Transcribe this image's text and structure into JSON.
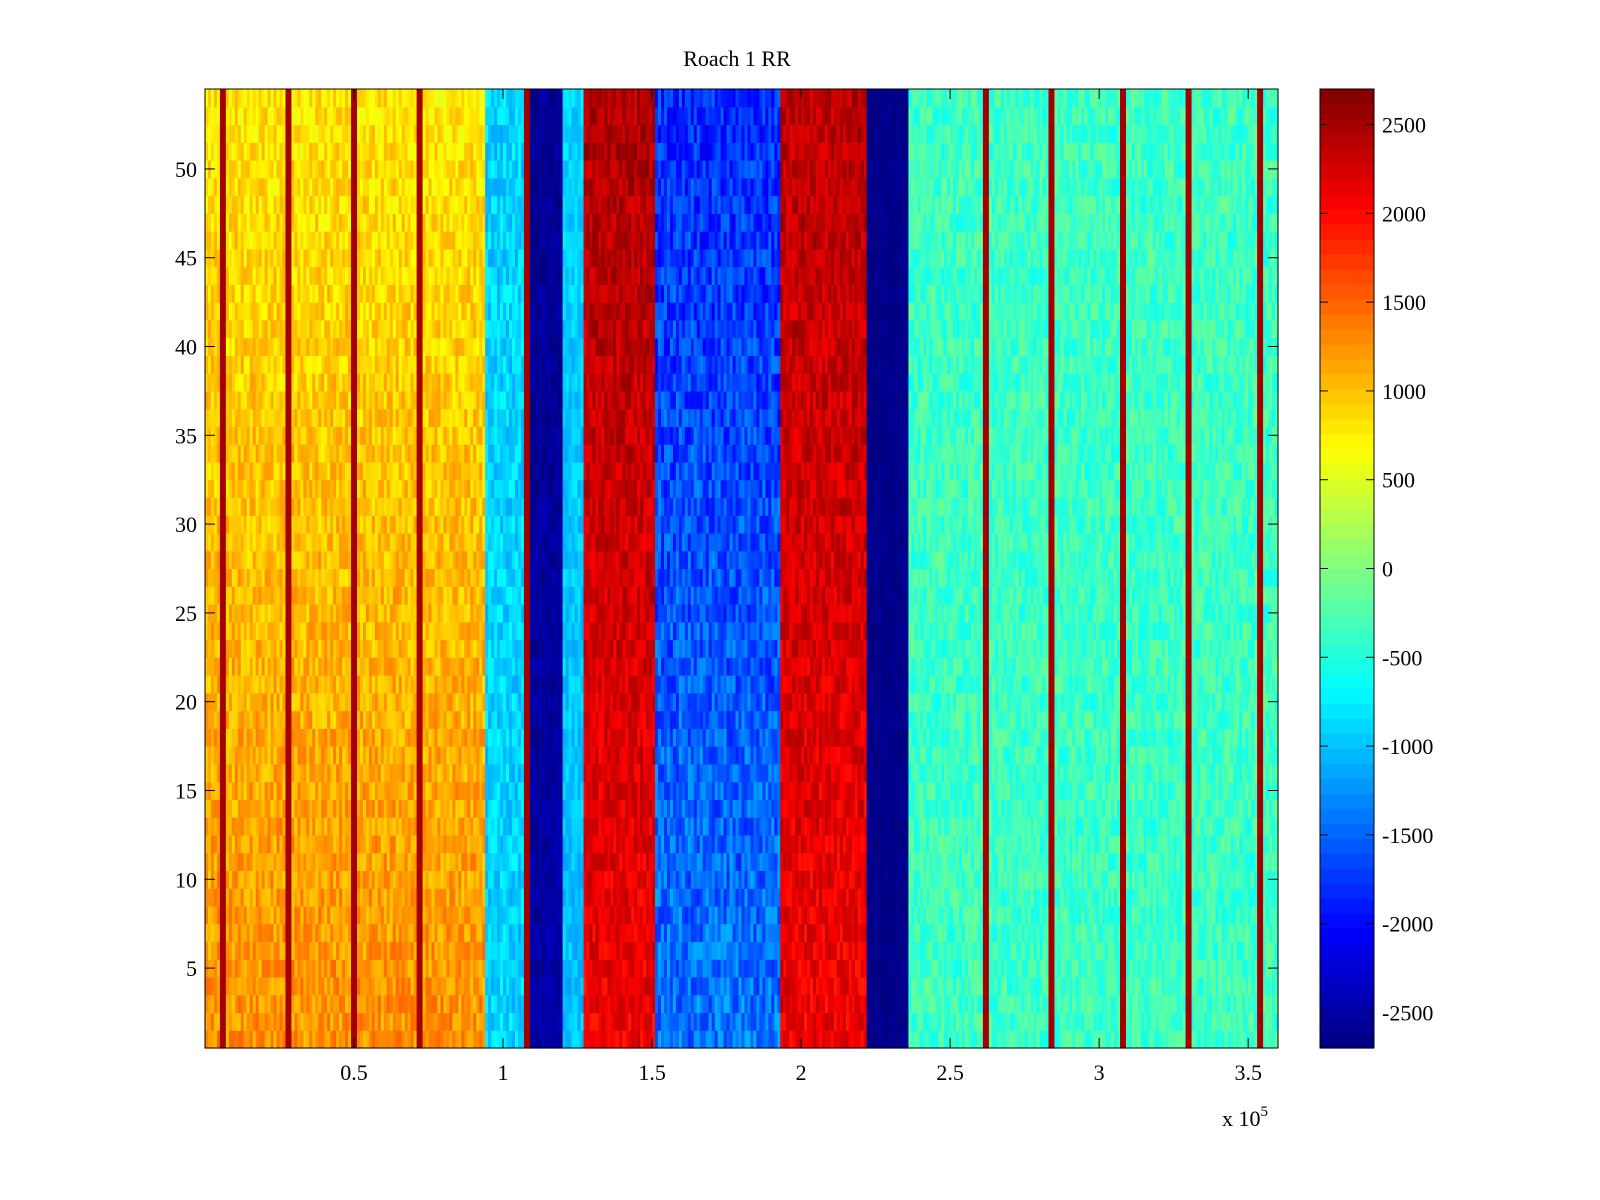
{
  "chart_data": {
    "type": "heatmap",
    "title": "Roach 1 RR",
    "xlabel": "",
    "ylabel": "",
    "x_multiplier_label": "x 10",
    "x_multiplier_exponent": "5",
    "xlim": [
      0,
      3.6
    ],
    "ylim": [
      0.5,
      54.5
    ],
    "x_ticks": [
      0.5,
      1,
      1.5,
      2,
      2.5,
      3,
      3.5
    ],
    "x_tick_labels": [
      "0.5",
      "1",
      "1.5",
      "2",
      "2.5",
      "3",
      "3.5"
    ],
    "y_ticks": [
      5,
      10,
      15,
      20,
      25,
      30,
      35,
      40,
      45,
      50
    ],
    "y_tick_labels": [
      "5",
      "10",
      "15",
      "20",
      "25",
      "30",
      "35",
      "40",
      "45",
      "50"
    ],
    "colormap": "jet",
    "colorbar": {
      "clim": [
        -2700,
        2700
      ],
      "ticks": [
        -2500,
        -2000,
        -1500,
        -1000,
        -500,
        0,
        500,
        1000,
        1500,
        2000,
        2500
      ],
      "tick_labels": [
        "-2500",
        "-2000",
        "-1500",
        "-1000",
        "-500",
        "0",
        "500",
        "1000",
        "1500",
        "2000",
        "2500"
      ]
    },
    "rows": 54,
    "bands": [
      {
        "x_start": 0.0,
        "x_end": 0.94,
        "value_low_y": 1250,
        "value_high_y": 800,
        "noise": 260
      },
      {
        "x_start": 0.94,
        "x_end": 1.08,
        "value_low_y": -900,
        "value_high_y": -900,
        "noise": 250
      },
      {
        "x_start": 1.08,
        "x_start_label": "",
        "x_end": 1.2,
        "value_low_y": -2500,
        "value_high_y": -2600,
        "noise": 150
      },
      {
        "x_start": 1.2,
        "x_end": 1.27,
        "value_low_y": -1000,
        "value_high_y": -900,
        "noise": 200
      },
      {
        "x_start": 1.27,
        "x_end": 1.51,
        "value_low_y": 2100,
        "value_high_y": 2450,
        "noise": 250
      },
      {
        "x_start": 1.51,
        "x_end": 1.93,
        "value_low_y": -1400,
        "value_high_y": -1800,
        "noise": 350
      },
      {
        "x_start": 1.93,
        "x_end": 2.22,
        "value_low_y": 2100,
        "value_high_y": 2400,
        "noise": 250
      },
      {
        "x_start": 2.22,
        "x_end": 2.36,
        "value_low_y": -2650,
        "value_high_y": -2650,
        "noise": 80
      },
      {
        "x_start": 2.36,
        "x_end": 3.6,
        "value_low_y": -350,
        "value_high_y": -350,
        "noise": 260
      }
    ],
    "spikes_x": [
      0.06,
      0.28,
      0.5,
      0.72,
      1.08,
      2.62,
      2.84,
      3.08,
      3.3,
      3.54
    ]
  }
}
